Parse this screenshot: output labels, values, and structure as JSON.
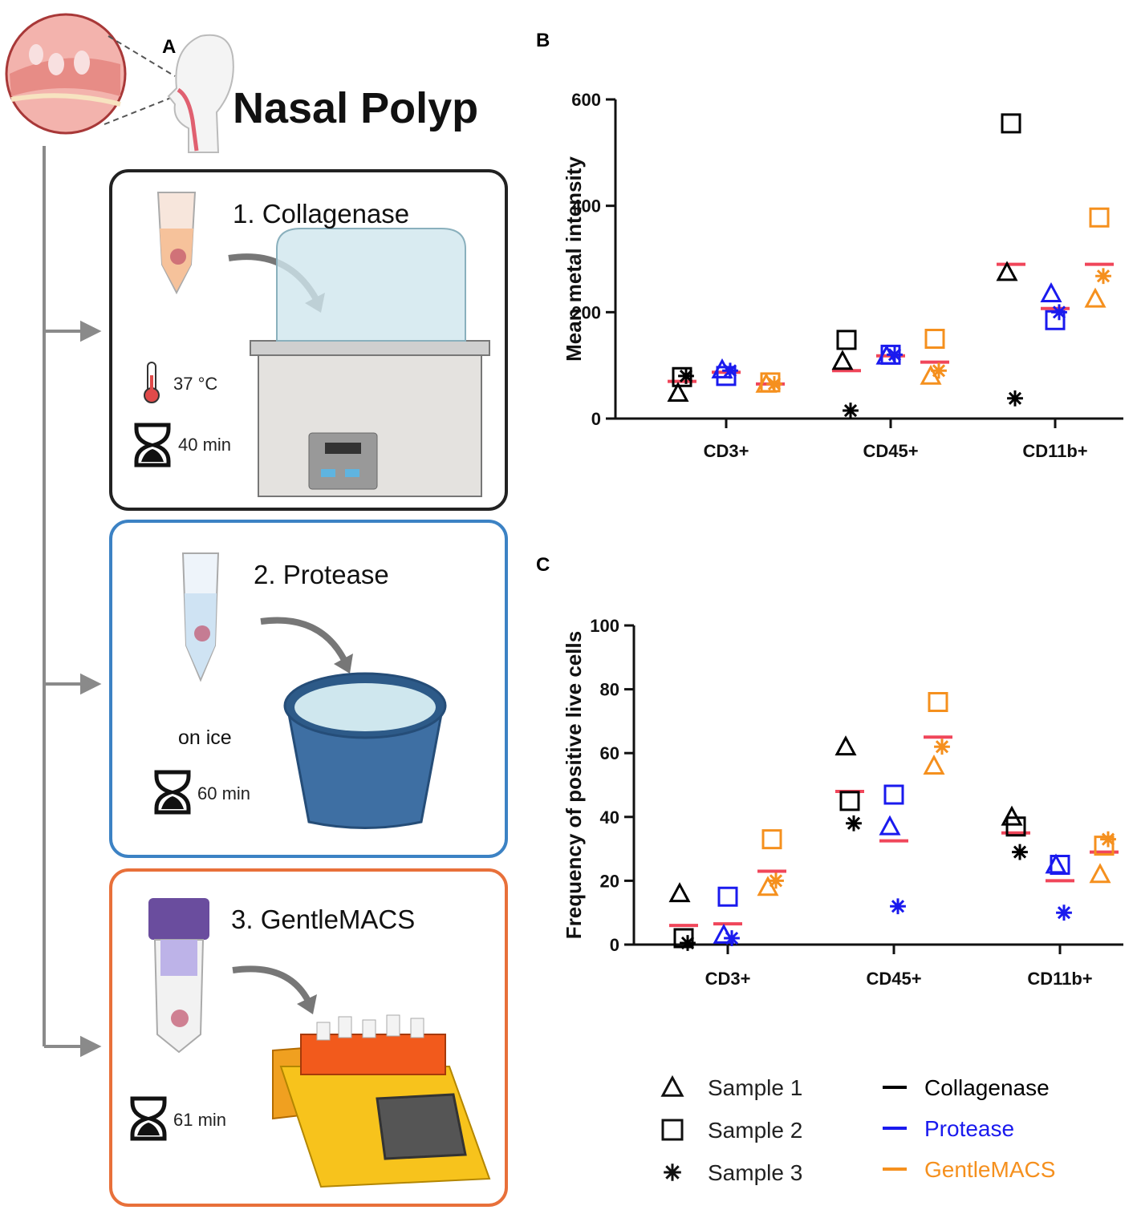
{
  "panel_a": {
    "label": "A",
    "title": "Nasal Polyp",
    "steps": [
      {
        "title": "1. Collagenase",
        "temperature": "37 °C",
        "time": "40 min"
      },
      {
        "title": "2. Protease",
        "condition": "on ice",
        "time": "60 min"
      },
      {
        "title": "3. GentleMACS",
        "time": "61 min"
      }
    ]
  },
  "legend": {
    "samples": [
      {
        "name": "Sample 1",
        "marker": "triangle"
      },
      {
        "name": "Sample 2",
        "marker": "square"
      },
      {
        "name": "Sample 3",
        "marker": "asterisk"
      }
    ],
    "methods": [
      {
        "name": "Collagenase",
        "color": "#000000"
      },
      {
        "name": "Protease",
        "color": "#1a1aee"
      },
      {
        "name": "GentleMACS",
        "color": "#f5901e"
      }
    ]
  },
  "chart_data": [
    {
      "type": "scatter",
      "panel_label": "B",
      "y_label": "Mean metal intensity",
      "categories": [
        "CD3+",
        "CD45+",
        "CD11b+"
      ],
      "ylim": [
        0,
        600
      ],
      "yticks": [
        0,
        200,
        400,
        600
      ],
      "mean_color": "#f0465a",
      "methods": [
        {
          "values": [
            [
              48,
              78,
              80
            ],
            [
              108,
              148,
              15
            ],
            [
              275,
              555,
              38
            ]
          ],
          "means": [
            70,
            90,
            290
          ]
        },
        {
          "values": [
            [
              92,
              80,
              90
            ],
            [
              118,
              120,
              120
            ],
            [
              235,
              185,
              200
            ]
          ],
          "means": [
            87,
            118,
            207
          ]
        },
        {
          "values": [
            [
              65,
              68,
              65
            ],
            [
              80,
              150,
              90
            ],
            [
              225,
              378,
              268
            ]
          ],
          "means": [
            65,
            106,
            290
          ]
        }
      ]
    },
    {
      "type": "scatter",
      "panel_label": "C",
      "y_label": "Frequency of positive live cells",
      "categories": [
        "CD3+",
        "CD45+",
        "CD11b+"
      ],
      "ylim": [
        0,
        100
      ],
      "yticks": [
        0,
        20,
        40,
        60,
        80,
        100
      ],
      "mean_color": "#f0465a",
      "methods": [
        {
          "values": [
            [
              16,
              2,
              0.5
            ],
            [
              62,
              45,
              38
            ],
            [
              40,
              37,
              29
            ]
          ],
          "means": [
            6,
            48,
            35
          ]
        },
        {
          "values": [
            [
              3,
              15,
              2
            ],
            [
              37,
              47,
              12
            ],
            [
              25,
              25,
              10
            ]
          ],
          "means": [
            6.5,
            32.5,
            20
          ]
        },
        {
          "values": [
            [
              18,
              33,
              20
            ],
            [
              56,
              76,
              62
            ],
            [
              22,
              31,
              33
            ]
          ],
          "means": [
            23,
            65,
            29
          ]
        }
      ]
    }
  ]
}
